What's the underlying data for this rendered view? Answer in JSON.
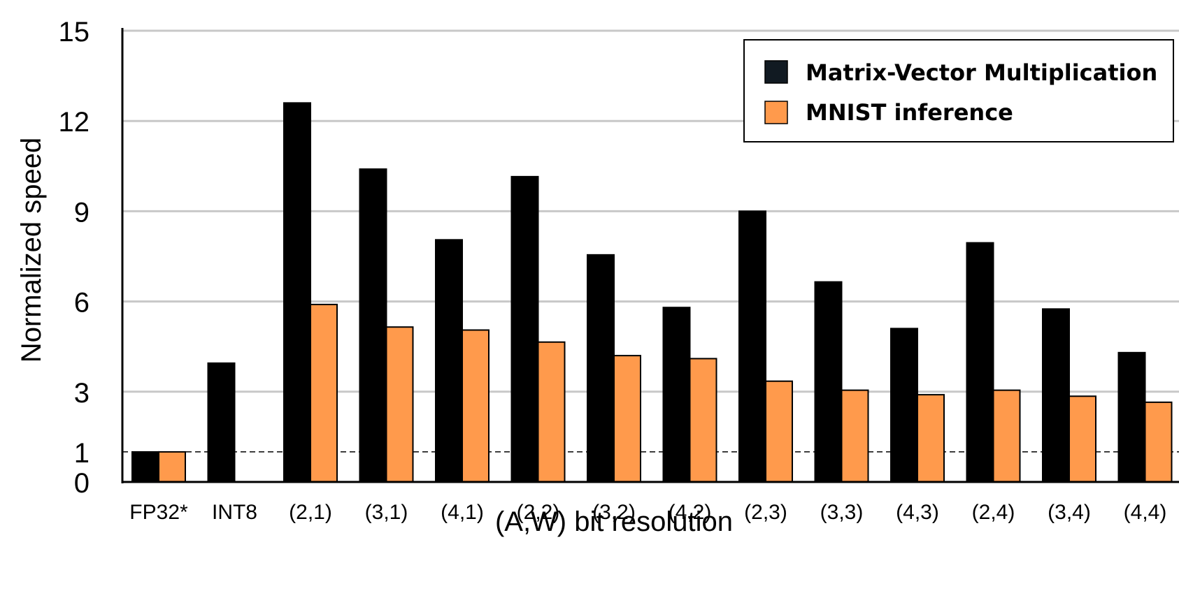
{
  "chart_data": {
    "type": "bar",
    "title": "",
    "xlabel": "(A,W) bit resolution",
    "ylabel": "Normalized speed",
    "ylim": [
      0,
      15
    ],
    "yticks": [
      0,
      1,
      3,
      6,
      9,
      12,
      15
    ],
    "reference_line": {
      "y": 1,
      "style": "dashed"
    },
    "grid": true,
    "legend_position": "top-right",
    "categories": [
      "FP32*",
      "INT8",
      "(2,1)",
      "(3,1)",
      "(4,1)",
      "(2,2)",
      "(3,2)",
      "(4,2)",
      "(2,3)",
      "(3,3)",
      "(4,3)",
      "(2,4)",
      "(3,4)",
      "(4,4)"
    ],
    "series": [
      {
        "name": "Matrix-Vector Multiplication",
        "color": "#000000",
        "legend_color": "#111a22",
        "values": [
          1.0,
          3.95,
          12.6,
          10.4,
          8.05,
          10.15,
          7.55,
          5.8,
          9.0,
          6.65,
          5.1,
          7.95,
          5.75,
          4.3
        ]
      },
      {
        "name": "MNIST inference",
        "color": "#ff9a4c",
        "legend_color": "#ff9a4c",
        "values": [
          1.0,
          null,
          5.9,
          5.15,
          5.05,
          4.65,
          4.2,
          4.1,
          3.35,
          3.05,
          2.9,
          3.05,
          2.85,
          2.65
        ]
      }
    ]
  }
}
